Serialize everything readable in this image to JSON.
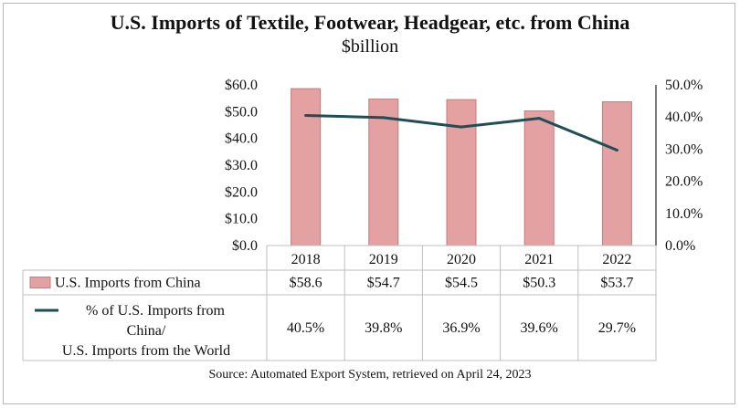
{
  "chart_data": {
    "type": "bar",
    "title": "U.S. Imports of Textile, Footwear, Headgear, etc. from China",
    "subtitle": "$billion",
    "categories": [
      "2018",
      "2019",
      "2020",
      "2021",
      "2022"
    ],
    "series": [
      {
        "name": "U.S. Imports from China",
        "kind": "bar",
        "axis": "left",
        "values": [
          58.6,
          54.7,
          54.5,
          50.3,
          53.7
        ],
        "labels": [
          "$58.6",
          "$54.7",
          "$54.5",
          "$50.3",
          "$53.7"
        ]
      },
      {
        "name_lines": [
          "% of U.S. Imports from",
          "China/",
          "U.S. Imports from the World"
        ],
        "kind": "line",
        "axis": "right",
        "values": [
          40.5,
          39.8,
          36.9,
          39.6,
          29.7
        ],
        "labels": [
          "40.5%",
          "39.8%",
          "36.9%",
          "39.6%",
          "29.7%"
        ]
      }
    ],
    "y_left": {
      "range": [
        0,
        60
      ],
      "ticks": [
        "$0.0",
        "$10.0",
        "$20.0",
        "$30.0",
        "$40.0",
        "$50.0",
        "$60.0"
      ]
    },
    "y_right": {
      "range": [
        0,
        50
      ],
      "ticks": [
        "0.0%",
        "10.0%",
        "20.0%",
        "30.0%",
        "40.0%",
        "50.0%"
      ]
    },
    "colors": {
      "bar_fill": "#e3a1a2",
      "bar_stroke": "#c47c7e",
      "line": "#1f4e57",
      "grid": "#bfbfbf"
    },
    "source": "Source: Automated Export System, retrieved on April 24, 2023"
  }
}
